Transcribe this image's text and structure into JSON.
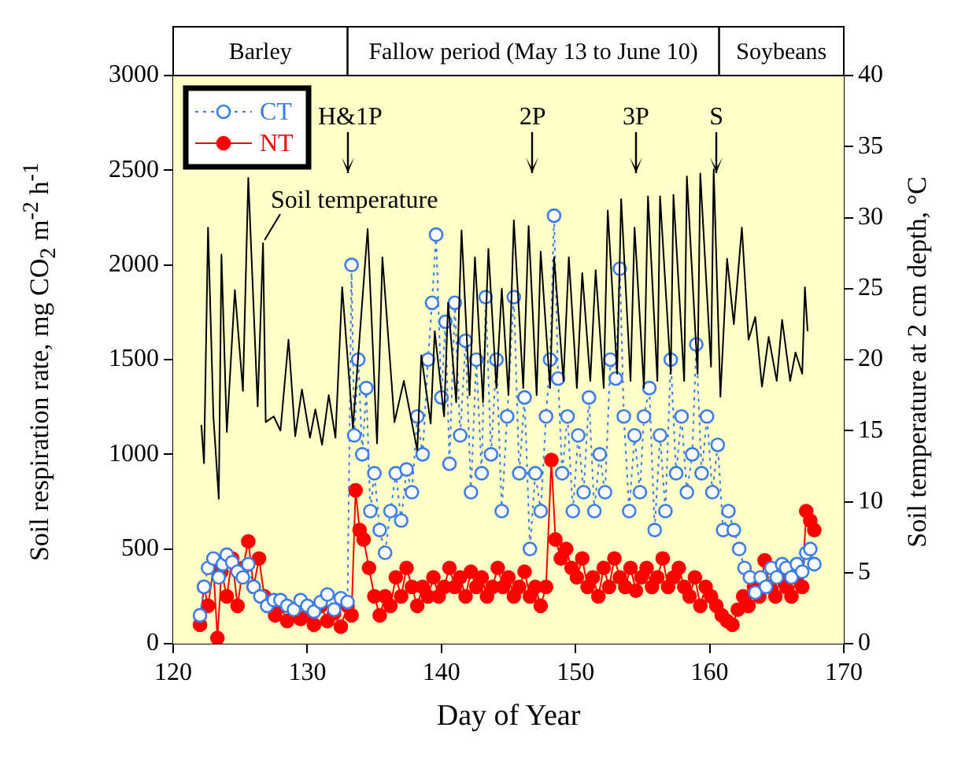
{
  "chart_data": {
    "type": "line",
    "xlabel": "Day of Year",
    "ylabel": "Soil respiration rate, mg CO$_{2}$ m$^{-2}$ h$^{-1}$",
    "y2label": "Soil temperature at 2 cm depth, °C",
    "xlim": [
      120,
      170
    ],
    "xticks": [
      120,
      130,
      140,
      150,
      160,
      170
    ],
    "ylim": [
      0,
      3000
    ],
    "yticks": [
      0,
      500,
      1000,
      1500,
      2000,
      2500,
      3000
    ],
    "y2lim": [
      0,
      40
    ],
    "y2ticks": [
      0,
      5,
      10,
      15,
      20,
      25,
      30,
      35,
      40
    ],
    "grid": false,
    "legend": "top left",
    "bands": [
      {
        "axis": "x",
        "from": 120,
        "to": 133,
        "label": "Barley",
        "color": "#ffffc8"
      },
      {
        "axis": "x",
        "from": 133,
        "to": 160.7,
        "label": "Fallow period (May 13 to June 10)",
        "color": "#ffffc8"
      },
      {
        "axis": "x",
        "from": 160.7,
        "to": 170,
        "label": "Soybeans",
        "color": "#ffffc8"
      }
    ],
    "ref_lines": [
      {
        "axis": "x",
        "value": 133,
        "label": "H&1P"
      },
      {
        "axis": "x",
        "value": 146.8,
        "label": "2P"
      },
      {
        "axis": "x",
        "value": 154.5,
        "label": "3P"
      },
      {
        "axis": "x",
        "value": 160.5,
        "label": "S"
      }
    ],
    "series": [
      {
        "type": "line",
        "name": "Soil temperature",
        "axis": "y2",
        "color": "#000000",
        "marker": "none",
        "line_style": "solid",
        "x": [
          122.1,
          122.3,
          122.6,
          123.0,
          123.4,
          123.6,
          124.0,
          124.6,
          125.2,
          125.6,
          126.3,
          126.7,
          126.9,
          127.5,
          128.0,
          128.6,
          129.1,
          129.6,
          130.2,
          130.6,
          131.1,
          131.6,
          132.1,
          132.6,
          133.4,
          134.5,
          135.2,
          135.6,
          136.5,
          137.2,
          138.2,
          138.5,
          139.2,
          139.5,
          140.2,
          140.5,
          141.1,
          141.5,
          142.1,
          142.5,
          143.1,
          143.5,
          144.1,
          144.5,
          145.0,
          145.4,
          146.1,
          146.5,
          147.1,
          147.4,
          148.1,
          148.4,
          149.1,
          149.5,
          150.1,
          150.5,
          151.1,
          151.5,
          152.1,
          152.4,
          153.1,
          153.4,
          154.1,
          154.4,
          155.1,
          155.4,
          156.1,
          156.3,
          157.1,
          157.3,
          158.1,
          158.3,
          159.1,
          159.3,
          160.1,
          160.3,
          160.8,
          161.3,
          161.8,
          162.4,
          162.9,
          163.4,
          163.9,
          164.4,
          165.0,
          165.4,
          166.0,
          166.4,
          166.9,
          167.1,
          167.3
        ],
        "values": [
          15.4,
          12.7,
          29.3,
          16,
          10.2,
          27.4,
          14.9,
          24.9,
          17.8,
          32.8,
          16.7,
          28.2,
          15.6,
          16,
          15,
          21.4,
          14.6,
          17.9,
          14.5,
          16.5,
          14,
          17.5,
          14.5,
          25.1,
          15.2,
          29.2,
          14.1,
          27.2,
          15.6,
          18.5,
          13.6,
          20.3,
          15.5,
          22,
          16,
          24,
          17,
          29.1,
          17.5,
          27.2,
          17,
          27.8,
          18,
          25,
          17.5,
          29.8,
          18,
          29.4,
          17.5,
          27.6,
          18,
          27.2,
          18.5,
          27.2,
          18,
          26.1,
          18.5,
          26.3,
          18,
          30.5,
          19,
          31.3,
          18.5,
          29.3,
          18,
          31.5,
          18.5,
          31.5,
          19,
          31.6,
          18.5,
          32.9,
          19,
          33.1,
          19.5,
          33.4,
          17.4,
          27.1,
          22.5,
          29.3,
          21.4,
          23,
          18.1,
          21.6,
          18.5,
          22.8,
          18.5,
          20.5,
          19,
          25.1,
          22
        ]
      },
      {
        "type": "line",
        "name": "CT",
        "color": "#3c7de6",
        "marker": "circle",
        "line_style": "dotted",
        "x": [
          122,
          122.3,
          122.6,
          123,
          123.4,
          123.7,
          124,
          124.4,
          124.8,
          125.2,
          125.6,
          126,
          126.5,
          127,
          127.5,
          128,
          128.5,
          129,
          129.5,
          130,
          130.5,
          131,
          131.5,
          132,
          132.5,
          133,
          133.3,
          133.5,
          133.8,
          134.1,
          134.4,
          134.7,
          135,
          135.4,
          135.8,
          136.2,
          136.6,
          137,
          137.4,
          137.8,
          138.2,
          138.6,
          139,
          139.3,
          139.6,
          140,
          140.3,
          140.6,
          141,
          141.4,
          141.8,
          142.2,
          142.6,
          143,
          143.3,
          143.7,
          144.1,
          144.5,
          144.9,
          145.4,
          145.8,
          146.2,
          146.6,
          147,
          147.4,
          147.8,
          148.1,
          148.4,
          148.7,
          149,
          149.4,
          149.8,
          150.2,
          150.6,
          151,
          151.4,
          151.8,
          152.2,
          152.6,
          153,
          153.3,
          153.6,
          154,
          154.4,
          154.8,
          155.1,
          155.5,
          155.9,
          156.3,
          156.7,
          157.1,
          157.5,
          157.9,
          158.3,
          158.7,
          159,
          159.4,
          159.8,
          160.2,
          160.6,
          161,
          161.4,
          161.8,
          162.2,
          162.6,
          163,
          163.4,
          163.8,
          164.2,
          164.6,
          165,
          165.4,
          165.7,
          166.1,
          166.5,
          166.9,
          167.2,
          167.5,
          167.8
        ],
        "values": [
          150,
          300,
          400,
          450,
          350,
          420,
          470,
          430,
          380,
          350,
          420,
          300,
          250,
          200,
          230,
          230,
          200,
          180,
          230,
          200,
          170,
          220,
          260,
          180,
          240,
          220,
          2000,
          1100,
          1500,
          1000,
          1350,
          700,
          900,
          600,
          480,
          700,
          900,
          650,
          920,
          800,
          1200,
          1000,
          1500,
          1800,
          2160,
          1300,
          1700,
          950,
          1800,
          1100,
          1600,
          800,
          1500,
          900,
          1830,
          1000,
          1500,
          700,
          1200,
          1830,
          900,
          1300,
          500,
          900,
          700,
          1200,
          1500,
          2260,
          1400,
          900,
          1200,
          700,
          1100,
          800,
          1300,
          700,
          1000,
          800,
          1500,
          1400,
          1980,
          1200,
          700,
          1100,
          800,
          1200,
          1350,
          600,
          1100,
          700,
          1500,
          900,
          1200,
          800,
          1000,
          1580,
          900,
          1200,
          800,
          1050,
          600,
          700,
          600,
          500,
          400,
          350,
          270,
          350,
          300,
          400,
          350,
          420,
          400,
          350,
          420,
          380,
          480,
          500,
          420
        ]
      },
      {
        "type": "line",
        "name": "NT",
        "color": "#ff0000",
        "marker": "circle",
        "line_style": "solid",
        "x": [
          122,
          122.3,
          122.6,
          123,
          123.3,
          123.6,
          124,
          124.4,
          124.8,
          125.2,
          125.6,
          126,
          126.4,
          126.8,
          127.2,
          127.6,
          128,
          128.5,
          129,
          129.5,
          130,
          130.5,
          131,
          131.5,
          132,
          132.5,
          133,
          133.3,
          133.6,
          133.9,
          134.2,
          134.6,
          135,
          135.4,
          135.8,
          136.2,
          136.6,
          137,
          137.4,
          137.8,
          138.2,
          138.6,
          139,
          139.4,
          139.8,
          140.2,
          140.6,
          141,
          141.4,
          141.8,
          142.2,
          142.6,
          143,
          143.4,
          143.8,
          144.2,
          144.6,
          145,
          145.4,
          145.8,
          146.2,
          146.6,
          147,
          147.4,
          147.8,
          148.2,
          148.5,
          148.9,
          149.3,
          149.7,
          150.1,
          150.5,
          150.9,
          151.3,
          151.7,
          152.1,
          152.5,
          152.9,
          153.3,
          153.7,
          154.1,
          154.5,
          154.9,
          155.3,
          155.7,
          156.1,
          156.5,
          156.9,
          157.3,
          157.7,
          158.1,
          158.5,
          158.9,
          159.3,
          159.7,
          160.1,
          160.5,
          160.9,
          161.3,
          161.7,
          162.1,
          162.5,
          162.9,
          163.3,
          163.7,
          164.1,
          164.5,
          164.9,
          165.3,
          165.7,
          166.1,
          166.5,
          166.9,
          167.2,
          167.5,
          167.8
        ],
        "values": [
          100,
          300,
          200,
          400,
          30,
          380,
          250,
          450,
          200,
          400,
          540,
          300,
          450,
          250,
          200,
          150,
          200,
          120,
          180,
          130,
          150,
          100,
          200,
          120,
          160,
          90,
          200,
          150,
          810,
          600,
          550,
          400,
          250,
          150,
          250,
          200,
          350,
          250,
          400,
          300,
          200,
          300,
          250,
          350,
          250,
          300,
          400,
          300,
          350,
          250,
          380,
          300,
          350,
          250,
          300,
          400,
          300,
          350,
          250,
          300,
          380,
          250,
          300,
          200,
          300,
          970,
          550,
          450,
          500,
          400,
          350,
          450,
          300,
          350,
          250,
          400,
          300,
          450,
          350,
          300,
          400,
          280,
          350,
          400,
          300,
          350,
          450,
          300,
          350,
          400,
          300,
          250,
          350,
          200,
          300,
          250,
          200,
          150,
          120,
          100,
          180,
          250,
          200,
          300,
          250,
          440,
          300,
          250,
          350,
          300,
          250,
          350,
          300,
          700,
          650,
          600
        ]
      }
    ]
  }
}
